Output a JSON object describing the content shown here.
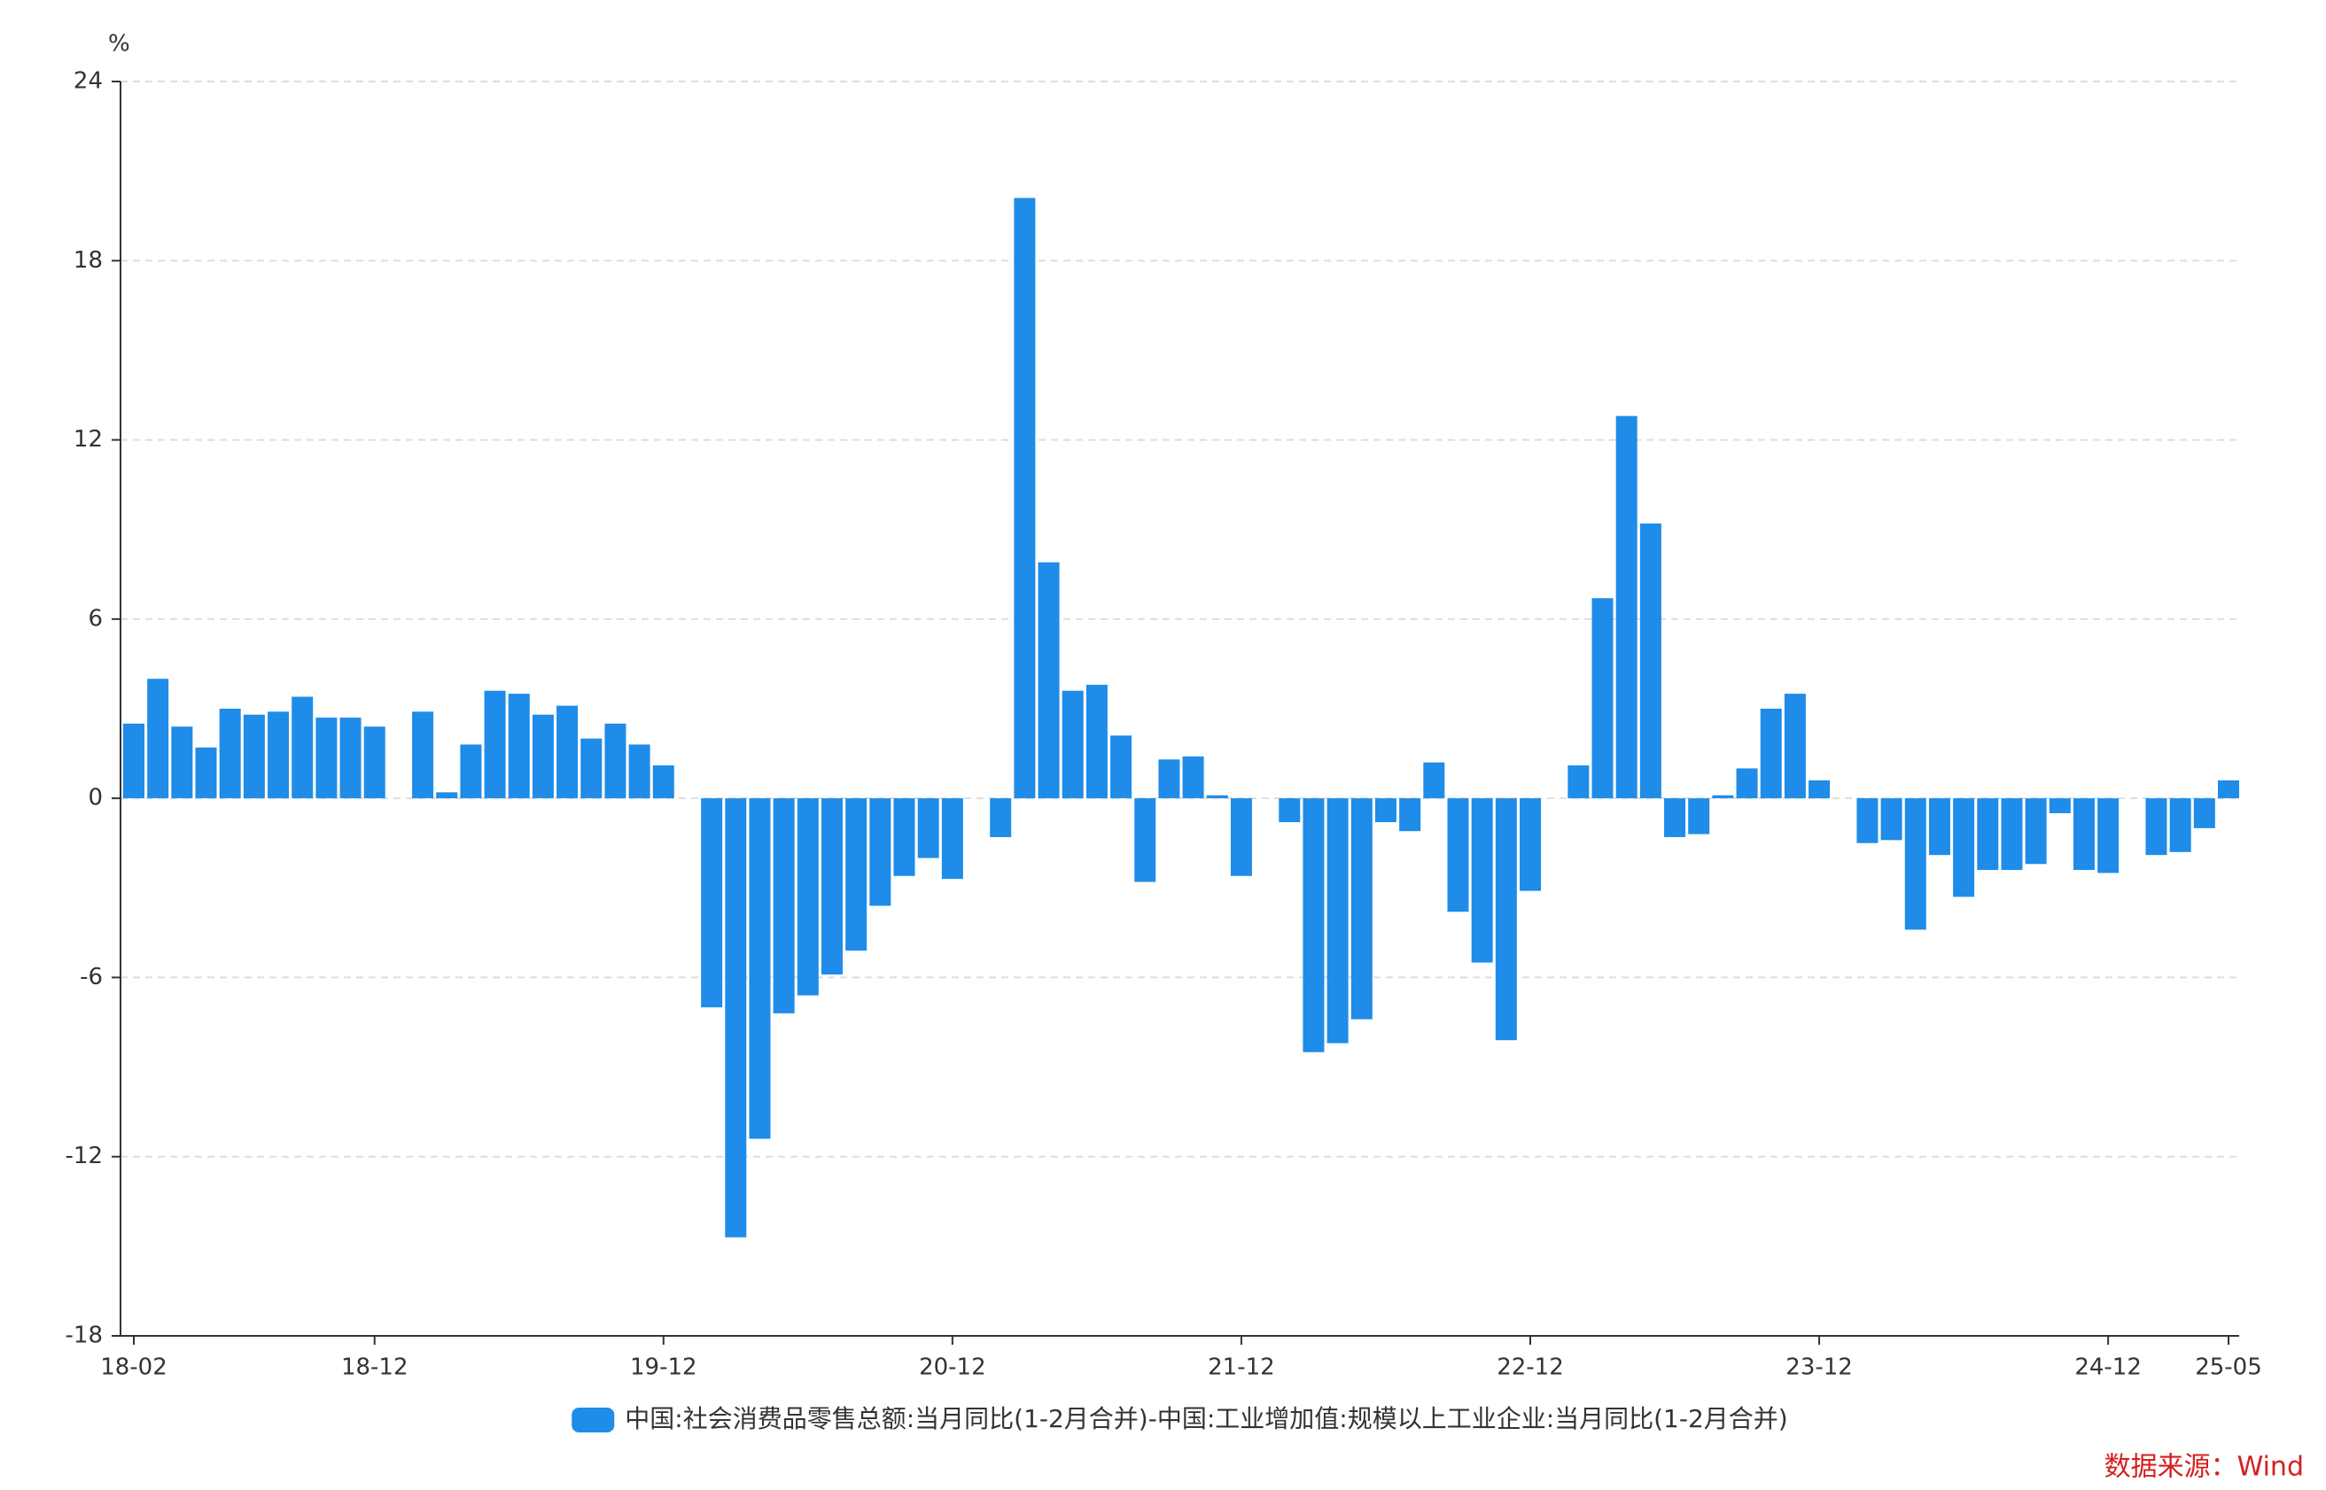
{
  "chart_data": {
    "type": "bar",
    "y_unit_label": "%",
    "categories": [
      "18-02",
      null,
      null,
      null,
      null,
      null,
      null,
      null,
      null,
      null,
      "18-12",
      null,
      null,
      null,
      null,
      null,
      null,
      null,
      null,
      null,
      null,
      null,
      "19-12",
      null,
      null,
      null,
      null,
      null,
      null,
      null,
      null,
      null,
      null,
      null,
      "20-12",
      null,
      null,
      null,
      null,
      null,
      null,
      null,
      null,
      null,
      null,
      null,
      "21-12",
      null,
      null,
      null,
      null,
      null,
      null,
      null,
      null,
      null,
      null,
      null,
      "22-12",
      null,
      null,
      null,
      null,
      null,
      null,
      null,
      null,
      null,
      null,
      null,
      "23-12",
      null,
      null,
      null,
      null,
      null,
      null,
      null,
      null,
      null,
      null,
      null,
      "24-12",
      null,
      null,
      null,
      null,
      "25-05"
    ],
    "series": [
      {
        "name": "中国:社会消费品零售总额:当月同比(1-2月合并)-中国:工业增加值:规模以上工业企业:当月同比(1-2月合并)",
        "color": "#1e8ce8",
        "values": [
          2.5,
          4.0,
          2.4,
          1.7,
          3.0,
          2.8,
          2.9,
          3.4,
          2.7,
          2.7,
          2.4,
          null,
          2.9,
          0.2,
          1.8,
          3.6,
          3.5,
          2.8,
          3.1,
          2.0,
          2.5,
          1.8,
          1.1,
          null,
          -7.0,
          -14.7,
          -11.4,
          -7.2,
          -6.6,
          -5.9,
          -5.1,
          -3.6,
          -2.6,
          -2.0,
          -2.7,
          null,
          -1.3,
          20.1,
          7.9,
          3.6,
          3.8,
          2.1,
          -2.8,
          1.3,
          1.4,
          0.1,
          -2.6,
          null,
          -0.8,
          -8.5,
          -8.2,
          -7.4,
          -0.8,
          -1.1,
          1.2,
          -3.8,
          -5.5,
          -8.1,
          -3.1,
          null,
          1.1,
          6.7,
          12.8,
          9.2,
          -1.3,
          -1.2,
          0.1,
          1.0,
          3.0,
          3.5,
          0.6,
          null,
          -1.5,
          -1.4,
          -4.4,
          -1.9,
          -3.3,
          -2.4,
          -2.4,
          -2.2,
          -0.5,
          -2.4,
          -2.5,
          null,
          -1.9,
          -1.8,
          -1.0,
          0.6
        ]
      }
    ],
    "ylim": [
      -18,
      24
    ],
    "yticks": [
      -18,
      -12,
      -6,
      0,
      6,
      12,
      18,
      24
    ],
    "grid": true,
    "legend": "bottom",
    "source": "数据来源：Wind"
  }
}
